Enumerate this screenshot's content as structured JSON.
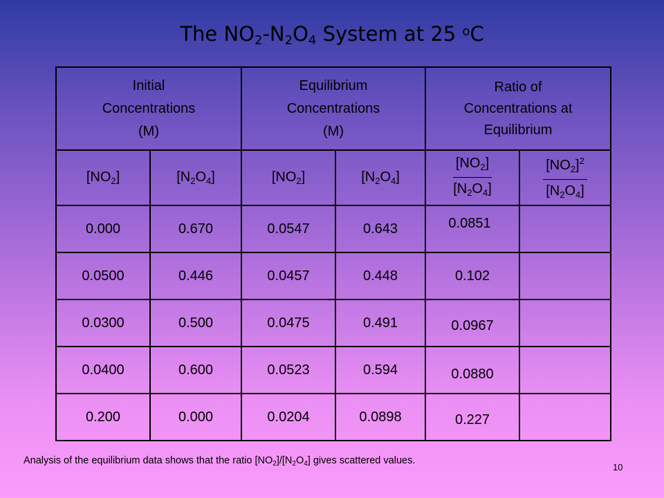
{
  "title": {
    "prefix": "The NO",
    "sub1": "2",
    "dash": "-N",
    "sub2": "2",
    "mid": "O",
    "sub3": "4",
    "suffix": " System at 25 ",
    "sup": "o",
    "unit": "C"
  },
  "headers": {
    "initial": [
      "Initial",
      "Concentrations",
      "(M)"
    ],
    "equilibrium": [
      "Equilibrium",
      "Concentrations",
      "(M)"
    ],
    "ratio": [
      "Ratio of",
      "Concentrations at",
      "Equilibrium"
    ]
  },
  "subheaders": {
    "no2": {
      "open": "[NO",
      "sub": "2",
      "close": "]"
    },
    "n2o4": {
      "open": "[N",
      "sub1": "2",
      "mid": "O",
      "sub2": "4",
      "close": "]"
    },
    "sq": "2"
  },
  "rows": [
    {
      "init_no2": "0.000",
      "init_n2o4": "0.670",
      "eq_no2": "0.0547",
      "eq_n2o4": "0.643",
      "ratio1": "0.0851",
      "ratio2": ""
    },
    {
      "init_no2": "0.0500",
      "init_n2o4": "0.446",
      "eq_no2": "0.0457",
      "eq_n2o4": "0.448",
      "ratio1": "0.102",
      "ratio2": ""
    },
    {
      "init_no2": "0.0300",
      "init_n2o4": "0.500",
      "eq_no2": "0.0475",
      "eq_n2o4": "0.491",
      "ratio1": "0.0967",
      "ratio2": ""
    },
    {
      "init_no2": "0.0400",
      "init_n2o4": "0.600",
      "eq_no2": "0.0523",
      "eq_n2o4": "0.594",
      "ratio1": "0.0880",
      "ratio2": ""
    },
    {
      "init_no2": "0.200",
      "init_n2o4": "0.000",
      "eq_no2": "0.0204",
      "eq_n2o4": "0.0898",
      "ratio1": "0.227",
      "ratio2": ""
    }
  ],
  "footnote": {
    "a": "Analysis of the equilibrium data shows that the ratio [NO",
    "s1": "2",
    "b": "]/[N",
    "s2": "2",
    "c": "O",
    "s3": "4",
    "d": "] gives scattered values."
  },
  "page_number": "10"
}
